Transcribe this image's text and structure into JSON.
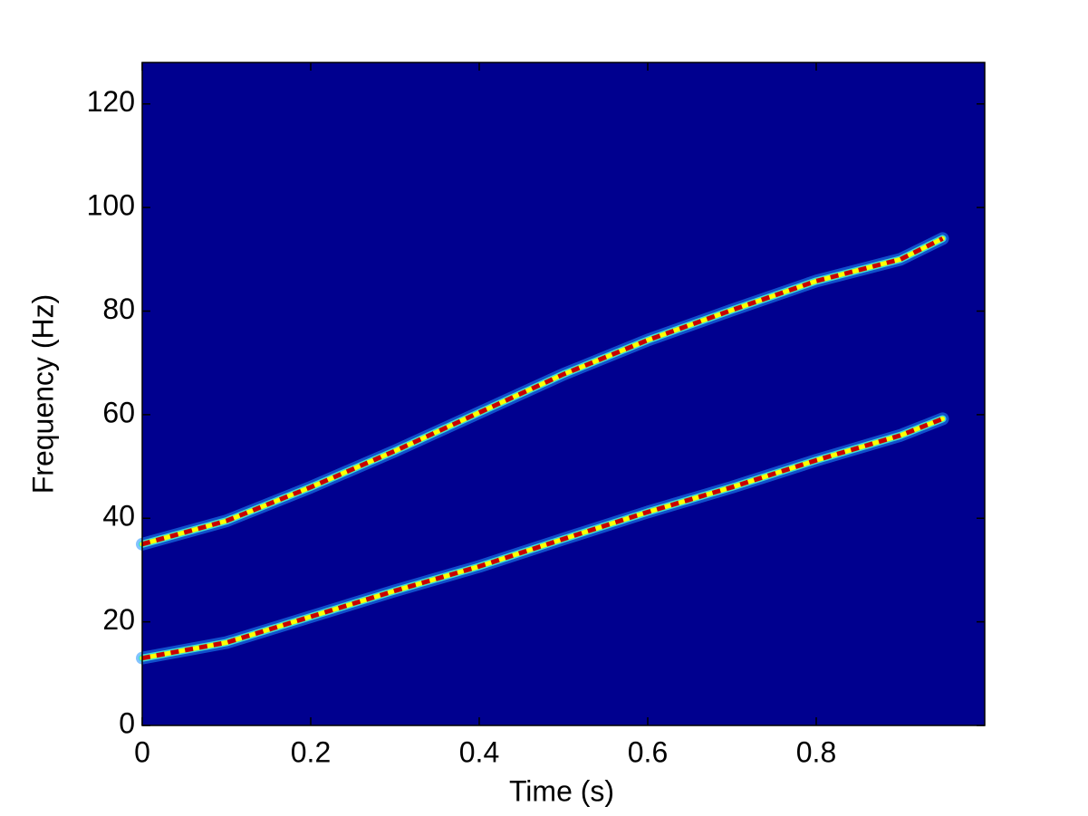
{
  "chart_data": {
    "type": "spectrogram",
    "xlabel": "Time (s)",
    "ylabel": "Frequency (Hz)",
    "xlim": [
      0,
      1
    ],
    "ylim": [
      0,
      128
    ],
    "xticks": [
      0,
      0.2,
      0.4,
      0.6,
      0.8
    ],
    "yticks": [
      0,
      20,
      40,
      60,
      80,
      100,
      120
    ],
    "background": "#00008f",
    "x": [
      0,
      0.1,
      0.2,
      0.3,
      0.4,
      0.5,
      0.6,
      0.7,
      0.8,
      0.9,
      0.95
    ],
    "series": [
      {
        "color": "#c80000",
        "values": [
          35,
          39.5,
          46,
          53,
          60.4,
          67.8,
          74.4,
          80.2,
          85.8,
          90,
          94
        ]
      },
      {
        "color": "#c80000",
        "values": [
          13,
          16,
          21,
          26,
          30.7,
          36,
          41.2,
          46,
          51.2,
          56,
          59.2
        ]
      }
    ]
  }
}
